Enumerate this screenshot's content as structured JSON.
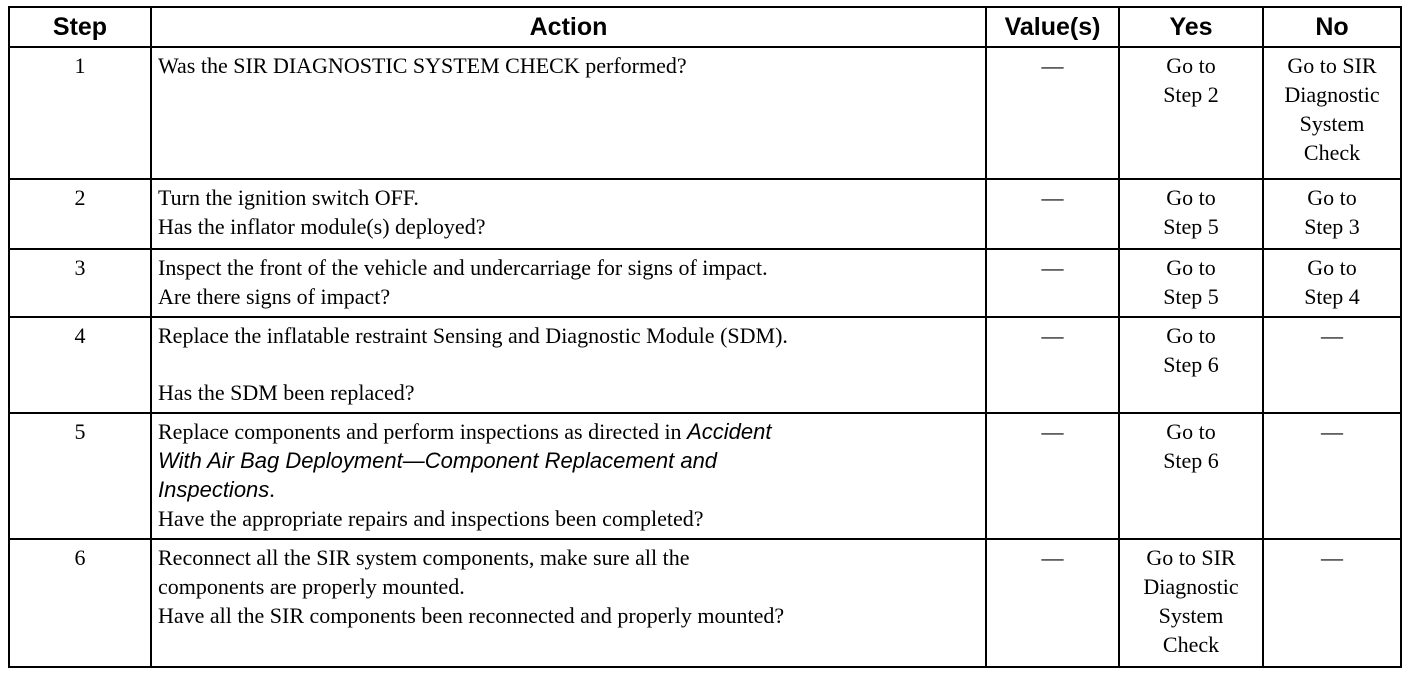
{
  "table": {
    "header": [
      "Step",
      "Action",
      "Value(s)",
      "Yes",
      "No"
    ],
    "rows": [
      {
        "step": "1",
        "action": [
          [
            "Was the SIR DIAGNOSTIC SYSTEM CHECK performed?"
          ]
        ],
        "values": "—",
        "yes": [
          "Go to",
          "Step 2"
        ],
        "no": [
          "Go to SIR",
          "Diagnostic",
          "System",
          "Check"
        ]
      },
      {
        "step": "2",
        "action": [
          [
            "Turn the ignition switch OFF."
          ],
          [
            "Has the inflator module(s) deployed?"
          ]
        ],
        "values": "—",
        "yes": [
          "Go to",
          "Step 5"
        ],
        "no": [
          "Go to",
          "Step 3"
        ]
      },
      {
        "step": "3",
        "action": [
          [
            "Inspect the front of the vehicle and undercarriage for signs of impact."
          ],
          [
            "Are there signs of impact?"
          ]
        ],
        "values": "—",
        "yes": [
          "Go to",
          "Step 5"
        ],
        "no": [
          "Go to",
          "Step 4"
        ]
      },
      {
        "step": "4",
        "action": [
          [
            "Replace the inflatable restraint Sensing and Diagnostic Module (SDM)."
          ],
          [
            "Has the SDM been replaced?"
          ]
        ],
        "values": "—",
        "yes": [
          "Go to",
          "Step 6"
        ],
        "no": [
          "—"
        ]
      },
      {
        "step": "5",
        "action": [
          [
            "Replace components and perform inspections as directed in ",
            {
              "text": "Accident",
              "italic": true
            }
          ],
          [
            {
              "text": "With Air Bag Deployment—Component Replacement and",
              "italic": true
            }
          ],
          [
            {
              "text": "Inspections",
              "italic": true
            },
            "."
          ],
          [
            "Have the appropriate repairs and inspections been completed?"
          ]
        ],
        "values": "—",
        "yes": [
          "Go to",
          "Step 6"
        ],
        "no": [
          "—"
        ]
      },
      {
        "step": "6",
        "action": [
          [
            "Reconnect all the SIR system components, make sure all the"
          ],
          [
            "components are properly mounted."
          ],
          [
            "Have all the SIR components been reconnected and properly mounted?"
          ]
        ],
        "values": "—",
        "yes": [
          "Go to SIR",
          "Diagnostic",
          "System",
          "Check"
        ],
        "no": [
          "—"
        ]
      }
    ]
  }
}
